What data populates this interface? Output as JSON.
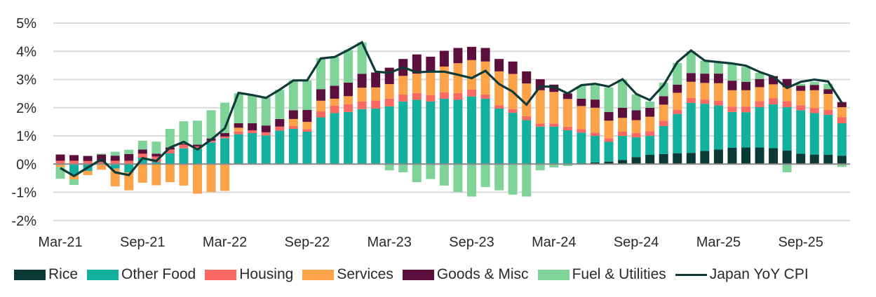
{
  "chart_data": {
    "type": "bar",
    "subtype": "stacked bar with line overlay",
    "title": "",
    "xlabel": "",
    "ylabel": "",
    "ylim": [
      -2,
      5
    ],
    "yticks": [
      "5%",
      "4%",
      "3%",
      "2%",
      "1%",
      "0%",
      "-1%",
      "-2%"
    ],
    "ytick_values": [
      5,
      4,
      3,
      2,
      1,
      0,
      -1,
      -2
    ],
    "grid": true,
    "legend_position": "bottom",
    "categories": [
      "Mar-21",
      "Apr-21",
      "May-21",
      "Jun-21",
      "Jul-21",
      "Aug-21",
      "Sep-21",
      "Oct-21",
      "Nov-21",
      "Dec-21",
      "Jan-22",
      "Feb-22",
      "Mar-22",
      "Apr-22",
      "May-22",
      "Jun-22",
      "Jul-22",
      "Aug-22",
      "Sep-22",
      "Oct-22",
      "Nov-22",
      "Dec-22",
      "Jan-23",
      "Feb-23",
      "Mar-23",
      "Apr-23",
      "May-23",
      "Jun-23",
      "Jul-23",
      "Aug-23",
      "Sep-23",
      "Oct-23",
      "Nov-23",
      "Dec-23",
      "Jan-24",
      "Feb-24",
      "Mar-24",
      "Apr-24",
      "May-24",
      "Jun-24",
      "Jul-24",
      "Aug-24",
      "Sep-24",
      "Oct-24",
      "Nov-24",
      "Dec-24",
      "Jan-25",
      "Feb-25",
      "Mar-25",
      "Apr-25",
      "May-25",
      "Jun-25",
      "Jul-25",
      "Aug-25",
      "Sep-25",
      "Oct-25",
      "Nov-25",
      "Dec-25"
    ],
    "xtick_labels": [
      {
        "index": 0,
        "label": "Mar-21"
      },
      {
        "index": 6,
        "label": "Sep-21"
      },
      {
        "index": 12,
        "label": "Mar-22"
      },
      {
        "index": 18,
        "label": "Sep-22"
      },
      {
        "index": 24,
        "label": "Mar-23"
      },
      {
        "index": 30,
        "label": "Sep-23"
      },
      {
        "index": 36,
        "label": "Mar-24"
      },
      {
        "index": 42,
        "label": "Sep-24"
      },
      {
        "index": 48,
        "label": "Mar-25"
      },
      {
        "index": 54,
        "label": "Sep-25"
      }
    ],
    "series": [
      {
        "name": "Rice",
        "kind": "bar",
        "color": "#0b3a36",
        "values": [
          0,
          0,
          0,
          0,
          0,
          0,
          0,
          0,
          0,
          0,
          0,
          0,
          0,
          0,
          0,
          0,
          0,
          0,
          0,
          0,
          0,
          0,
          0,
          0,
          0,
          0,
          0,
          0,
          0,
          0,
          0,
          0,
          0,
          0,
          0,
          0,
          0,
          0,
          0.03,
          0.06,
          0.09,
          0.15,
          0.25,
          0.33,
          0.36,
          0.38,
          0.4,
          0.47,
          0.52,
          0.58,
          0.59,
          0.59,
          0.57,
          0.48,
          0.37,
          0.34,
          0.33,
          0.3
        ]
      },
      {
        "name": "Other Food",
        "kind": "bar",
        "color": "#12b19f",
        "values": [
          0,
          -0.39,
          -0.24,
          0,
          -0.16,
          -0.29,
          0.23,
          0.07,
          0.38,
          0.56,
          0.54,
          0.77,
          0.92,
          1.06,
          1.1,
          1.02,
          1.19,
          1.25,
          1.15,
          1.66,
          1.81,
          1.85,
          1.95,
          1.97,
          2.05,
          2.22,
          2.28,
          2.22,
          2.32,
          2.28,
          2.4,
          2.32,
          1.97,
          1.82,
          1.56,
          1.33,
          1.33,
          1.2,
          1.09,
          0.94,
          0.7,
          0.85,
          0.7,
          0.67,
          0.99,
          1.4,
          1.77,
          1.67,
          1.56,
          1.27,
          1.25,
          1.43,
          1.55,
          1.54,
          1.54,
          1.47,
          1.42,
          1.15
        ]
      },
      {
        "name": "Housing",
        "kind": "bar",
        "color": "#fa6a62",
        "values": [
          0.12,
          0.12,
          0.11,
          0.08,
          0.12,
          0.12,
          0.14,
          0.2,
          0.14,
          0.13,
          0.09,
          0.06,
          0.06,
          0.09,
          0.1,
          0.11,
          0.14,
          0.1,
          0.09,
          0.22,
          0.26,
          0.27,
          0.27,
          0.29,
          0.27,
          0.25,
          0.24,
          0.23,
          0.23,
          0.24,
          0.25,
          0.15,
          0.12,
          0.13,
          0.14,
          0.11,
          0.11,
          0.13,
          0.12,
          0.12,
          0.13,
          0.15,
          0.15,
          0.17,
          0.19,
          0.15,
          0.18,
          0.15,
          0.17,
          0.19,
          0.2,
          0.21,
          0.22,
          0.21,
          0.18,
          0.18,
          0.17,
          0.22
        ]
      },
      {
        "name": "Services",
        "kind": "bar",
        "color": "#fca34a",
        "values": [
          -0.1,
          -0.15,
          -0.15,
          -0.2,
          -0.63,
          -0.64,
          -0.66,
          -0.75,
          -0.64,
          -0.76,
          -1.05,
          -0.99,
          -0.95,
          0.14,
          0,
          0,
          0,
          0.25,
          0.26,
          0.37,
          0.25,
          0.29,
          0.49,
          0.46,
          0.52,
          0.66,
          0.69,
          0.84,
          0.91,
          1.06,
          1.04,
          1.17,
          1.2,
          1.25,
          1.16,
          1.18,
          1.12,
          0.98,
          0.82,
          0.88,
          0.62,
          0.49,
          0.46,
          0.51,
          0.57,
          0.6,
          0.57,
          0.59,
          0.62,
          0.58,
          0.58,
          0.5,
          0.49,
          0.5,
          0.51,
          0.63,
          0.57,
          0.35
        ]
      },
      {
        "name": "Goods & Misc",
        "kind": "bar",
        "color": "#5c0f3c",
        "values": [
          0.22,
          0.2,
          0.18,
          0.26,
          0.18,
          0.24,
          0.15,
          0.1,
          0.07,
          0.03,
          0.06,
          0.08,
          0.12,
          0.16,
          0.25,
          0.24,
          0.27,
          0.31,
          0.42,
          0.41,
          0.46,
          0.48,
          0.49,
          0.53,
          0.58,
          0.6,
          0.68,
          0.52,
          0.56,
          0.54,
          0.47,
          0.48,
          0.44,
          0.44,
          0.43,
          0.39,
          0.26,
          0.2,
          0.26,
          0.29,
          0.31,
          0.36,
          0.35,
          0.32,
          0.3,
          0.29,
          0.31,
          0.33,
          0.34,
          0.34,
          0.3,
          0.29,
          0.29,
          0.29,
          0.18,
          0.19,
          0.17,
          0.18
        ]
      },
      {
        "name": "Fuel & Utilities",
        "kind": "bar",
        "color": "#7fd398",
        "values": [
          -0.42,
          -0.2,
          0,
          0.03,
          0.14,
          0.15,
          0.31,
          0.43,
          0.66,
          0.8,
          0.85,
          1.0,
          1.08,
          1.06,
          1.0,
          1.0,
          1.04,
          1.06,
          1.05,
          1.1,
          1.02,
          1.16,
          1.12,
          0,
          -0.22,
          -0.29,
          -0.64,
          -0.53,
          -0.76,
          -0.99,
          -1.15,
          -0.81,
          -0.93,
          -1.08,
          -1.15,
          -0.22,
          -0.12,
          -0.07,
          0.44,
          0.51,
          0.87,
          1.0,
          0.56,
          0.22,
          0.48,
          0.77,
          0.77,
          0.46,
          0.39,
          0.58,
          0.53,
          0.22,
          0,
          -0.29,
          0.07,
          0.11,
          0.19,
          -0.1
        ]
      },
      {
        "name": "Japan YoY CPI",
        "kind": "line",
        "color": "#0e3a37",
        "values": [
          -0.14,
          -0.42,
          -0.12,
          0.17,
          -0.29,
          -0.39,
          0.21,
          0.11,
          0.59,
          0.79,
          0.52,
          0.87,
          1.27,
          2.53,
          2.45,
          2.35,
          2.64,
          2.97,
          2.97,
          3.75,
          3.8,
          4.05,
          4.32,
          3.28,
          3.24,
          3.43,
          3.26,
          3.28,
          3.28,
          3.17,
          3.05,
          3.31,
          2.84,
          2.57,
          2.11,
          2.76,
          2.74,
          2.51,
          2.8,
          2.85,
          2.75,
          3.01,
          2.49,
          2.27,
          2.8,
          3.62,
          4.03,
          3.67,
          3.62,
          3.57,
          3.49,
          3.27,
          3.1,
          2.7,
          2.92,
          3.0,
          2.93,
          2.17
        ]
      }
    ]
  },
  "legend": {
    "items": [
      {
        "label": "Rice",
        "color": "#0b3a36",
        "kind": "box"
      },
      {
        "label": "Other Food",
        "color": "#12b19f",
        "kind": "box"
      },
      {
        "label": "Housing",
        "color": "#fa6a62",
        "kind": "box"
      },
      {
        "label": "Services",
        "color": "#fca34a",
        "kind": "box"
      },
      {
        "label": "Goods & Misc",
        "color": "#5c0f3c",
        "kind": "box"
      },
      {
        "label": "Fuel & Utilities",
        "color": "#7fd398",
        "kind": "box"
      },
      {
        "label": "Japan YoY CPI",
        "color": "#0e3a37",
        "kind": "line"
      }
    ]
  }
}
